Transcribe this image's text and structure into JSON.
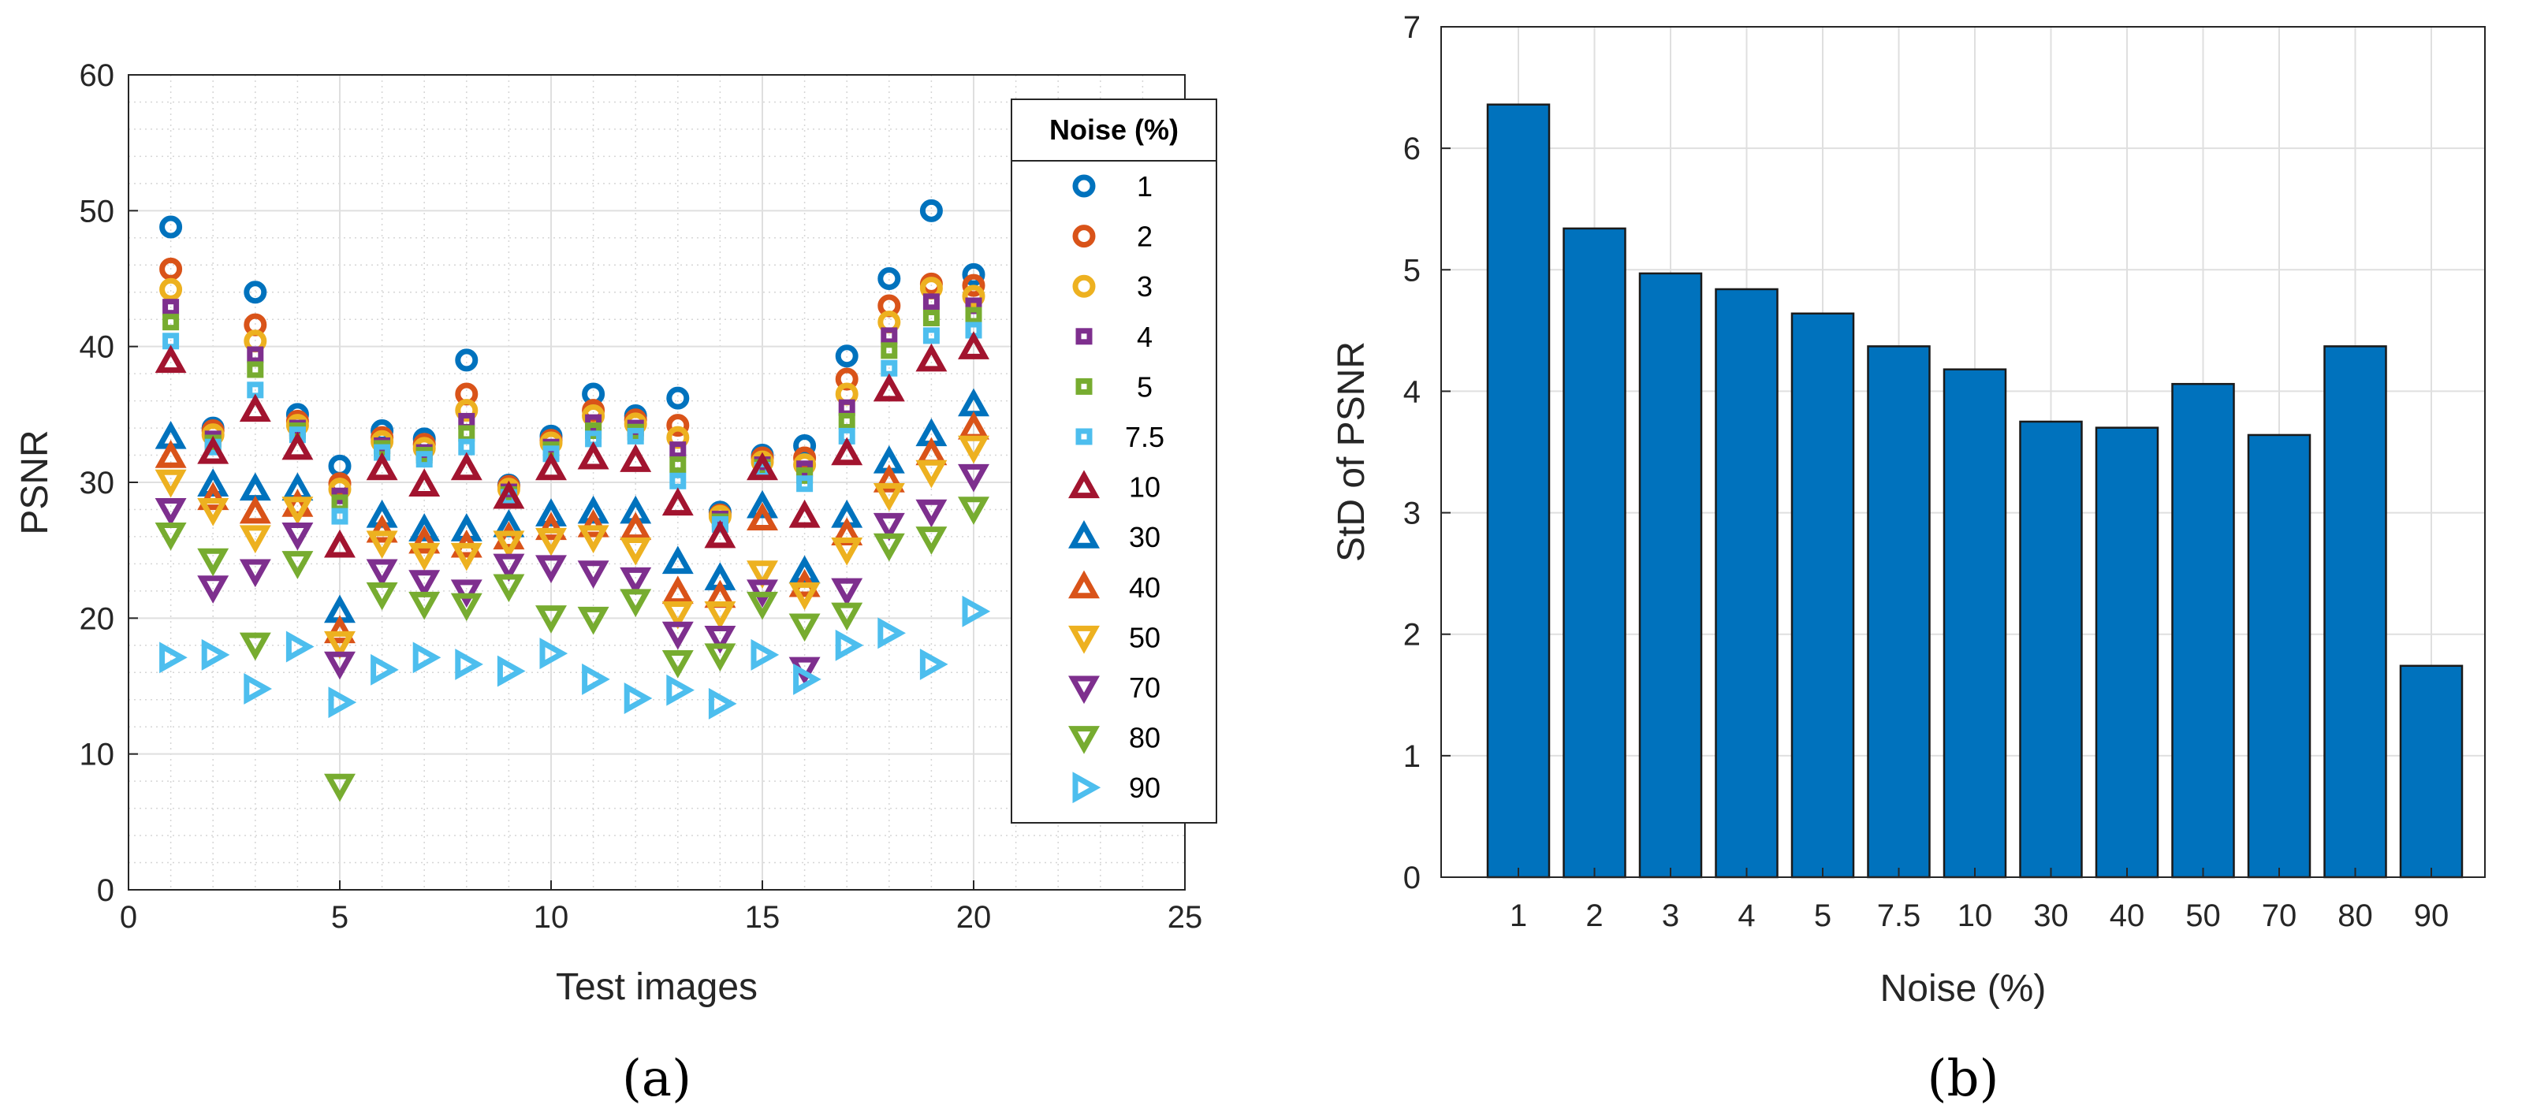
{
  "chart_data": [
    {
      "type": "scatter",
      "panel_label": "(a)",
      "xlabel": "Test images",
      "ylabel": "PSNR",
      "xlim": [
        0,
        25
      ],
      "ylim": [
        0,
        60
      ],
      "xticks": [
        "0",
        "5",
        "10",
        "15",
        "20",
        "25"
      ],
      "yticks": [
        "0",
        "10",
        "20",
        "30",
        "40",
        "50",
        "60"
      ],
      "grid": true,
      "legend_title": "Noise  (%)",
      "legend_position": "top-right",
      "x": [
        1,
        2,
        3,
        4,
        5,
        6,
        7,
        8,
        9,
        10,
        11,
        12,
        13,
        14,
        15,
        16,
        17,
        18,
        19,
        20
      ],
      "series": [
        {
          "name": "1",
          "marker": "circle",
          "color": "#0072BD",
          "values": [
            48.8,
            34,
            44,
            35,
            31.2,
            33.8,
            33.2,
            39,
            29.8,
            33.4,
            36.5,
            34.9,
            36.2,
            27.8,
            32,
            32.7,
            39.3,
            45,
            50,
            45.3
          ]
        },
        {
          "name": "2",
          "marker": "circle",
          "color": "#D95319",
          "values": [
            45.7,
            33.8,
            41.6,
            34.5,
            29.9,
            33.3,
            32.8,
            36.5,
            29.7,
            33.1,
            35.3,
            34.6,
            34.2,
            27.6,
            31.8,
            31.8,
            37.6,
            43,
            44.6,
            44.5
          ]
        },
        {
          "name": "3",
          "marker": "circle",
          "color": "#EDB120",
          "values": [
            44.2,
            33.5,
            40.4,
            34.2,
            29.5,
            33,
            32.5,
            35.3,
            29.5,
            32.9,
            34.9,
            34.3,
            33.3,
            27.5,
            31.5,
            31.3,
            36.5,
            41.8,
            44.3,
            43.7
          ]
        },
        {
          "name": "4",
          "marker": "square",
          "color": "#7E2F8E",
          "values": [
            42.9,
            33.2,
            39.4,
            34,
            29,
            32.7,
            32.2,
            34.5,
            29.3,
            32.6,
            34.4,
            34,
            32.4,
            27.3,
            31.3,
            31,
            35.5,
            40.8,
            43.3,
            43
          ]
        },
        {
          "name": "5",
          "marker": "square",
          "color": "#77AC30",
          "values": [
            41.8,
            32.9,
            38.3,
            33.8,
            28.5,
            32.5,
            32,
            33.6,
            29.1,
            32.4,
            33.8,
            33.7,
            31.3,
            27.1,
            31.1,
            30.5,
            34.5,
            39.7,
            42.1,
            42.3
          ]
        },
        {
          "name": "7.5",
          "marker": "square",
          "color": "#4DBEEE",
          "values": [
            40.4,
            32.6,
            36.8,
            33.5,
            27.5,
            32.2,
            31.7,
            32.6,
            28.9,
            32.1,
            33.2,
            33.4,
            30.1,
            26.9,
            30.9,
            29.9,
            33.4,
            38.4,
            40.8,
            41.2
          ]
        },
        {
          "name": "10",
          "marker": "triangle-up",
          "color": "#A2142F",
          "values": [
            38.9,
            32.2,
            35.3,
            32.5,
            25.3,
            31,
            29.8,
            31,
            28.9,
            31,
            31.8,
            31.6,
            28.4,
            26,
            31,
            27.5,
            32.1,
            36.8,
            39,
            39.9
          ]
        },
        {
          "name": "30",
          "marker": "triangle-up",
          "color": "#0072BD",
          "values": [
            33.3,
            29.8,
            29.5,
            29.5,
            20.5,
            27.5,
            26.5,
            26.5,
            26.8,
            27.6,
            27.8,
            27.8,
            24.1,
            22.9,
            28.2,
            23.4,
            27.5,
            31.5,
            33.5,
            35.7
          ]
        },
        {
          "name": "40",
          "marker": "triangle-up",
          "color": "#D95319",
          "values": [
            31.9,
            28.8,
            27.8,
            28.3,
            19,
            26.4,
            25.6,
            25.3,
            25.9,
            26.6,
            26.8,
            26.6,
            21.9,
            21.6,
            27.3,
            22.4,
            26.2,
            30.1,
            32.1,
            34
          ]
        },
        {
          "name": "50",
          "marker": "triangle-down",
          "color": "#EDB120",
          "values": [
            30.1,
            28,
            26,
            28.1,
            18.2,
            25.6,
            24.7,
            24.7,
            25.6,
            25.8,
            26,
            25.1,
            20.4,
            20.4,
            23.4,
            21.8,
            25.1,
            29.1,
            30.8,
            32.6
          ]
        },
        {
          "name": "70",
          "marker": "triangle-down",
          "color": "#7E2F8E",
          "values": [
            28,
            22.3,
            23.5,
            26.2,
            16.7,
            23.5,
            22.7,
            22,
            23.9,
            23.8,
            23.4,
            22.9,
            18.9,
            18.6,
            22,
            16.3,
            22.1,
            26.9,
            27.9,
            30.5
          ]
        },
        {
          "name": "80",
          "marker": "triangle-down",
          "color": "#77AC30",
          "values": [
            26.2,
            24.3,
            18.1,
            24.1,
            7.7,
            21.8,
            21.1,
            21,
            22.4,
            20.1,
            20,
            21.3,
            16.8,
            17.3,
            21.1,
            19.5,
            20.3,
            25.4,
            25.9,
            28.1
          ]
        },
        {
          "name": "90",
          "marker": "triangle-right",
          "color": "#4DBEEE",
          "values": [
            17.1,
            17.3,
            14.8,
            17.9,
            13.8,
            16.2,
            17.1,
            16.6,
            16.1,
            17.4,
            15.5,
            14.1,
            14.7,
            13.7,
            17.3,
            15.5,
            18,
            18.9,
            16.6,
            20.5
          ]
        }
      ]
    },
    {
      "type": "bar",
      "panel_label": "(b)",
      "xlabel": "Noise  (%)",
      "ylabel": "StD of PSNR",
      "ylim": [
        0,
        7
      ],
      "yticks": [
        "0",
        "1",
        "2",
        "3",
        "4",
        "5",
        "6",
        "7"
      ],
      "grid": true,
      "bar_color": "#0072BD",
      "categories": [
        "1",
        "2",
        "3",
        "4",
        "5",
        "7.5",
        "10",
        "30",
        "40",
        "50",
        "70",
        "80",
        "90"
      ],
      "values": [
        6.36,
        5.34,
        4.97,
        4.84,
        4.64,
        4.37,
        4.18,
        3.75,
        3.7,
        4.06,
        3.64,
        4.37,
        1.74
      ]
    }
  ]
}
